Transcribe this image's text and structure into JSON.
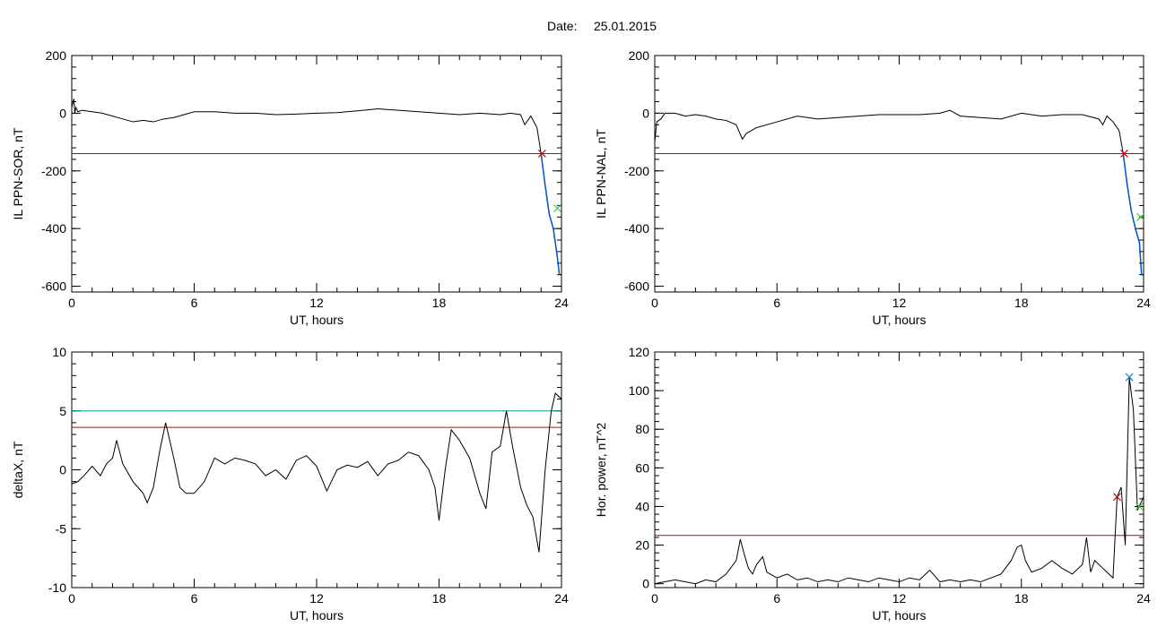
{
  "header": {
    "date_label": "Date:",
    "date_value": "25.01.2015"
  },
  "colors": {
    "axis": "#000000",
    "trace": "#000000",
    "threshold": "#cc0000",
    "threshold2": "#009999",
    "segment": "#0055cc",
    "marker_red": "#cc0000",
    "marker_green": "#33cc33",
    "marker_blue": "#0088cc"
  },
  "chart_data": [
    {
      "id": "sor",
      "type": "line",
      "ylabel": "IL PPN-SOR, nT",
      "xlabel": "UT, hours",
      "xlim": [
        0,
        24
      ],
      "ylim": [
        -620,
        200
      ],
      "xticks": [
        0,
        6,
        12,
        18,
        24
      ],
      "xtick_labels": [
        "0",
        "6",
        "12",
        "18",
        "24"
      ],
      "yticks": [
        -600,
        -400,
        -200,
        0,
        200
      ],
      "ytick_labels": [
        "-600",
        "-400",
        "-200",
        "0",
        "200"
      ],
      "threshold": -140,
      "series": [
        {
          "x": [
            0,
            0.1,
            0.15,
            0.2,
            0.3,
            0.5,
            1,
            1.5,
            2,
            2.5,
            3,
            3.5,
            4,
            4.5,
            5,
            5.5,
            6,
            7,
            8,
            9,
            10,
            11,
            12,
            13,
            14,
            15,
            16,
            17,
            18,
            19,
            20,
            21,
            21.5,
            22,
            22.2,
            22.5,
            22.8,
            23,
            23.2,
            23.4,
            23.6,
            23.8,
            23.9,
            24
          ],
          "y": [
            20,
            50,
            0,
            20,
            5,
            10,
            5,
            0,
            -10,
            -20,
            -30,
            -25,
            -30,
            -20,
            -15,
            -5,
            5,
            5,
            0,
            0,
            -5,
            -3,
            0,
            2,
            8,
            15,
            10,
            5,
            0,
            -5,
            0,
            -5,
            0,
            -5,
            -40,
            -10,
            -50,
            -140,
            -250,
            -350,
            -400,
            -500,
            -560,
            -560
          ]
        }
      ],
      "segment": {
        "x": [
          23,
          23.2,
          23.4,
          23.6,
          23.8,
          23.9
        ],
        "y": [
          -140,
          -250,
          -350,
          -400,
          -500,
          -560
        ]
      },
      "markers": [
        {
          "x": 23.05,
          "y": -140,
          "color": "marker_red"
        },
        {
          "x": 23.8,
          "y": -330,
          "color": "marker_green"
        }
      ]
    },
    {
      "id": "nal",
      "type": "line",
      "ylabel": "IL PPN-NAL, nT",
      "xlabel": "UT, hours",
      "xlim": [
        0,
        24
      ],
      "ylim": [
        -620,
        200
      ],
      "xticks": [
        0,
        6,
        12,
        18,
        24
      ],
      "xtick_labels": [
        "0",
        "6",
        "12",
        "18",
        "24"
      ],
      "yticks": [
        -600,
        -400,
        -200,
        0,
        200
      ],
      "ytick_labels": [
        "-600",
        "-400",
        "-200",
        "0",
        "200"
      ],
      "threshold": -140,
      "series": [
        {
          "x": [
            0,
            0.1,
            0.3,
            0.5,
            1,
            1.5,
            2,
            2.5,
            3,
            3.5,
            4,
            4.3,
            4.5,
            5,
            6,
            7,
            8,
            9,
            10,
            11,
            12,
            13,
            14,
            14.5,
            15,
            16,
            17,
            18,
            19,
            20,
            21,
            21.8,
            22,
            22.2,
            22.5,
            22.8,
            23,
            23.2,
            23.4,
            23.6,
            23.8,
            23.9,
            24
          ],
          "y": [
            -100,
            -30,
            -20,
            0,
            0,
            -10,
            -5,
            -10,
            -20,
            -25,
            -40,
            -90,
            -70,
            -50,
            -30,
            -10,
            -20,
            -15,
            -10,
            -5,
            -5,
            -5,
            0,
            10,
            -10,
            -15,
            -20,
            0,
            -10,
            -5,
            -5,
            -20,
            -40,
            -10,
            -30,
            -60,
            -140,
            -250,
            -340,
            -400,
            -450,
            -560,
            -560
          ]
        }
      ],
      "segment": {
        "x": [
          23,
          23.2,
          23.4,
          23.6,
          23.8,
          23.9
        ],
        "y": [
          -140,
          -250,
          -340,
          -400,
          -450,
          -560
        ]
      },
      "markers": [
        {
          "x": 23.05,
          "y": -140,
          "color": "marker_red"
        },
        {
          "x": 23.85,
          "y": -360,
          "color": "marker_green"
        }
      ]
    },
    {
      "id": "deltax",
      "type": "line",
      "ylabel": "deltaX, nT",
      "xlabel": "UT, hours",
      "xlim": [
        0,
        24
      ],
      "ylim": [
        -10,
        10
      ],
      "xticks": [
        0,
        6,
        12,
        18,
        24
      ],
      "xtick_labels": [
        "0",
        "6",
        "12",
        "18",
        "24"
      ],
      "yticks": [
        -10,
        -5,
        0,
        5,
        10
      ],
      "ytick_labels": [
        "-10",
        "-5",
        "0",
        "5",
        "10"
      ],
      "threshold": 3.6,
      "threshold2": 5,
      "series": [
        {
          "x": [
            0,
            0.3,
            0.6,
            1,
            1.4,
            1.7,
            2,
            2.2,
            2.5,
            3,
            3.5,
            3.7,
            4,
            4.3,
            4.6,
            5,
            5.3,
            5.6,
            6,
            6.5,
            7,
            7.5,
            8,
            8.5,
            9,
            9.5,
            10,
            10.5,
            11,
            11.5,
            12,
            12.5,
            13,
            13.5,
            14,
            14.5,
            15,
            15.5,
            16,
            16.5,
            17,
            17.5,
            17.8,
            18,
            18.3,
            18.6,
            19,
            19.5,
            20,
            20.3,
            20.6,
            21,
            21.3,
            21.6,
            22,
            22.3,
            22.6,
            22.9,
            23.2,
            23.5,
            23.7,
            24
          ],
          "y": [
            -1.2,
            -1,
            -0.5,
            0.3,
            -0.5,
            0.5,
            1,
            2.5,
            0.5,
            -1,
            -2,
            -2.8,
            -1.5,
            1.5,
            4,
            1,
            -1.5,
            -2,
            -2,
            -1,
            1,
            0.5,
            1,
            0.8,
            0.5,
            -0.5,
            0,
            -0.8,
            0.8,
            1.2,
            0.3,
            -1.8,
            0,
            0.4,
            0.2,
            0.7,
            -0.5,
            0.5,
            0.8,
            1.5,
            1.2,
            0,
            -1.5,
            -4.3,
            0,
            3.4,
            2.5,
            1,
            -2,
            -3.3,
            1.5,
            2,
            5,
            2,
            -1.5,
            -3,
            -4,
            -7,
            0,
            5,
            6.5,
            6
          ]
        }
      ]
    },
    {
      "id": "power",
      "type": "line",
      "ylabel": "Hor. power, nT^2",
      "xlabel": "UT, hours",
      "xlim": [
        0,
        24
      ],
      "ylim": [
        -2,
        120
      ],
      "xticks": [
        0,
        6,
        12,
        18,
        24
      ],
      "xtick_labels": [
        "0",
        "6",
        "12",
        "18",
        "24"
      ],
      "yticks": [
        0,
        20,
        40,
        60,
        80,
        100,
        120
      ],
      "ytick_labels": [
        "0",
        "20",
        "40",
        "60",
        "80",
        "100",
        "120"
      ],
      "threshold": 25,
      "series": [
        {
          "x": [
            0,
            0.5,
            1,
            1.5,
            2,
            2.5,
            3,
            3.5,
            4,
            4.2,
            4.4,
            4.6,
            4.8,
            5,
            5.3,
            5.5,
            6,
            6.5,
            7,
            7.5,
            8,
            8.5,
            9,
            9.5,
            10,
            10.5,
            11,
            11.5,
            12,
            12.5,
            13,
            13.5,
            14,
            14.5,
            15,
            15.5,
            16,
            16.5,
            17,
            17.5,
            17.8,
            18,
            18.2,
            18.5,
            19,
            19.5,
            20,
            20.5,
            21,
            21.2,
            21.4,
            21.6,
            22,
            22.5,
            22.7,
            22.9,
            23.1,
            23.3,
            23.5,
            23.7,
            24
          ],
          "y": [
            0,
            1,
            2,
            1,
            0,
            2,
            1,
            5,
            12,
            23,
            15,
            8,
            5,
            10,
            14,
            6,
            3,
            5,
            2,
            3,
            1,
            2,
            1,
            3,
            2,
            1,
            3,
            2,
            1,
            3,
            2,
            7,
            1,
            2,
            1,
            2,
            1,
            3,
            5,
            12,
            19,
            20,
            12,
            6,
            8,
            12,
            8,
            5,
            10,
            24,
            6,
            12,
            8,
            3,
            45,
            50,
            20,
            107,
            90,
            38,
            45
          ]
        }
      ],
      "markers": [
        {
          "x": 22.7,
          "y": 45,
          "color": "marker_red"
        },
        {
          "x": 23.3,
          "y": 107,
          "color": "marker_blue"
        },
        {
          "x": 23.8,
          "y": 40,
          "color": "marker_green"
        }
      ]
    }
  ]
}
